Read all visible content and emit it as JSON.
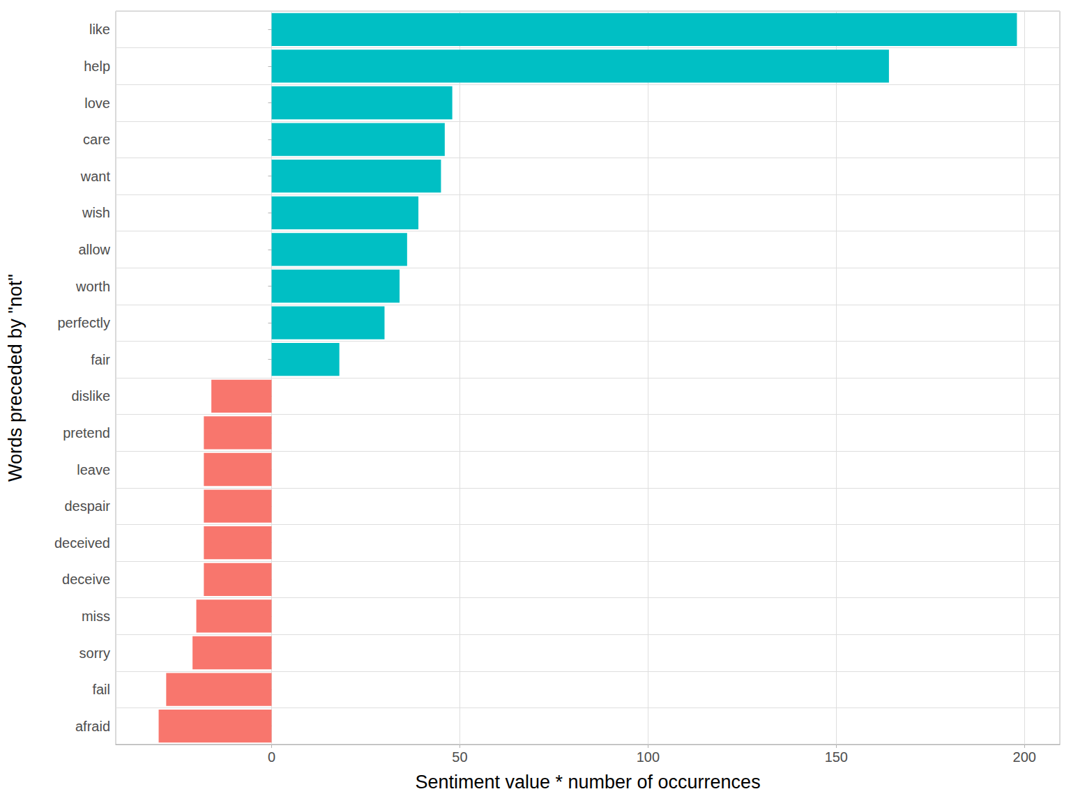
{
  "chart_data": {
    "type": "bar",
    "orientation": "horizontal",
    "xlabel": "Sentiment value * number of occurrences",
    "ylabel": "Words preceded by \"not\"",
    "categories": [
      "like",
      "help",
      "love",
      "care",
      "want",
      "wish",
      "allow",
      "worth",
      "perfectly",
      "fair",
      "dislike",
      "pretend",
      "leave",
      "despair",
      "deceived",
      "deceive",
      "miss",
      "sorry",
      "fail",
      "afraid"
    ],
    "values": [
      198,
      164,
      48,
      46,
      45,
      39,
      36,
      34,
      30,
      18,
      -16,
      -18,
      -18,
      -18,
      -18,
      -18,
      -20,
      -21,
      -28,
      -30
    ],
    "colors": [
      "#00BFC4",
      "#00BFC4",
      "#00BFC4",
      "#00BFC4",
      "#00BFC4",
      "#00BFC4",
      "#00BFC4",
      "#00BFC4",
      "#00BFC4",
      "#00BFC4",
      "#F8766D",
      "#F8766D",
      "#F8766D",
      "#F8766D",
      "#F8766D",
      "#F8766D",
      "#F8766D",
      "#F8766D",
      "#F8766D",
      "#F8766D"
    ],
    "xlim": [
      -41.4,
      209.4
    ],
    "xticks": [
      0,
      50,
      100,
      150,
      200
    ],
    "grid": true
  }
}
